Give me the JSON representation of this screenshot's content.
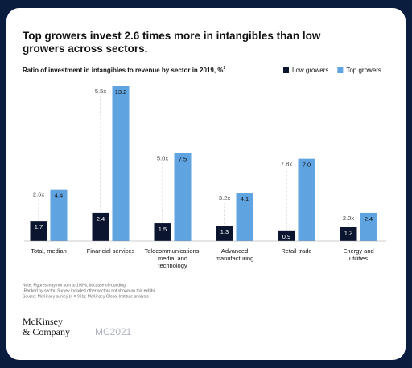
{
  "chart_data": {
    "type": "bar",
    "title": "Top growers invest 2.6 times more in intangibles than low growers across sectors.",
    "subtitle": "Ratio of investment in intangibles to revenue by sector in 2019, %",
    "subtitle_note": "1",
    "categories": [
      "Total, median",
      "Financial services",
      "Telecommunications, media, and technology",
      "Advanced manufacturing",
      "Retail trade",
      "Energy and utilities"
    ],
    "series": [
      {
        "name": "Low growers",
        "color": "#0b1530",
        "values": [
          1.7,
          2.4,
          1.5,
          1.3,
          0.9,
          1.2
        ]
      },
      {
        "name": "Top growers",
        "color": "#5fa3e0",
        "values": [
          4.4,
          13.2,
          7.5,
          4.1,
          7.0,
          2.4
        ],
        "value_labels": [
          "4.4",
          "13.2",
          "7.5",
          "4.1",
          "7.0",
          "2.4"
        ]
      }
    ],
    "annotations": [
      "2.6x",
      "5.5x",
      "5.0x",
      "3.2x",
      "7.8x",
      "2.0x"
    ],
    "ylim": [
      0,
      13.2
    ],
    "notes": [
      "Note: Figures may not sum to 100%, because of rounding.",
      "¹Ranked by sector. Survey included other sectors not shown on this exhibit.",
      "Source: McKinsey survey (n = 991); McKinsey Global Institute analysis"
    ],
    "brand": [
      "McKinsey",
      "& Company"
    ],
    "code": "MC2021"
  }
}
